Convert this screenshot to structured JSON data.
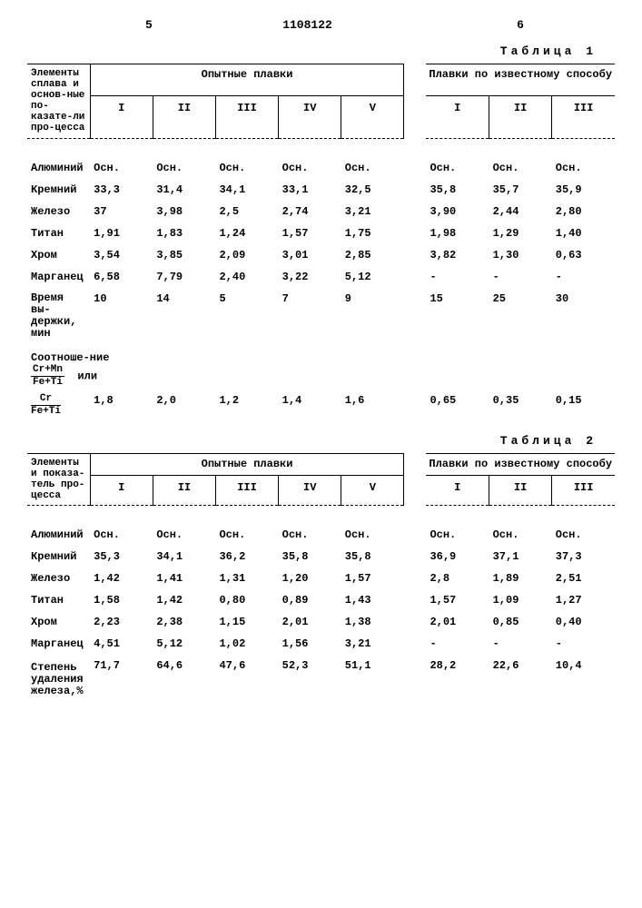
{
  "page": {
    "left_num": "5",
    "right_num": "6",
    "doc_number": "1108122"
  },
  "table1": {
    "caption": "Таблица 1",
    "header_left": "Элементы сплава и основ-ные по-казате-ли про-цесса",
    "group1": "Опытные плавки",
    "group2": "Плавки по известному способу",
    "cols": [
      "I",
      "II",
      "III",
      "IV",
      "V",
      "I",
      "II",
      "III"
    ],
    "rows": [
      {
        "label": "Алюминий",
        "v": [
          "Осн.",
          "Осн.",
          "Осн.",
          "Осн.",
          "Осн.",
          "Осн.",
          "Осн.",
          "Осн."
        ]
      },
      {
        "label": "Кремний",
        "v": [
          "33,3",
          "31,4",
          "34,1",
          "33,1",
          "32,5",
          "35,8",
          "35,7",
          "35,9"
        ]
      },
      {
        "label": "Железо",
        "v": [
          "37",
          "3,98",
          "2,5",
          "2,74",
          "3,21",
          "3,90",
          "2,44",
          "2,80"
        ]
      },
      {
        "label": "Титан",
        "v": [
          "1,91",
          "1,83",
          "1,24",
          "1,57",
          "1,75",
          "1,98",
          "1,29",
          "1,40"
        ]
      },
      {
        "label": "Хром",
        "v": [
          "3,54",
          "3,85",
          "2,09",
          "3,01",
          "2,85",
          "3,82",
          "1,30",
          "0,63"
        ]
      },
      {
        "label": "Марганец",
        "v": [
          "6,58",
          "7,79",
          "2,40",
          "3,22",
          "5,12",
          "-",
          "-",
          "-"
        ]
      }
    ],
    "time_label": "Время вы-держки, мин",
    "time_vals": [
      "10",
      "14",
      "5",
      "7",
      "9",
      "15",
      "25",
      "30"
    ],
    "ratio_label": "Соотноше-ние",
    "ratio_frac1_num": "Cr+Mn",
    "ratio_frac1_den": "Fe+Ti",
    "ratio_or": "или",
    "ratio_frac2_num": "Cr",
    "ratio_frac2_den": "Fe+Ti",
    "ratio_vals": [
      "1,8",
      "2,0",
      "1,2",
      "1,4",
      "1,6",
      "0,65",
      "0,35",
      "0,15"
    ]
  },
  "table2": {
    "caption": "Таблица 2",
    "header_left": "Элементы и показа-тель про-цесса",
    "group1": "Опытные плавки",
    "group2": "Плавки по известному способу",
    "cols": [
      "I",
      "II",
      "III",
      "IV",
      "V",
      "I",
      "II",
      "III"
    ],
    "rows": [
      {
        "label": "Алюминий",
        "v": [
          "Осн.",
          "Осн.",
          "Осн.",
          "Осн.",
          "Осн.",
          "Осн.",
          "Осн.",
          "Осн."
        ]
      },
      {
        "label": "Кремний",
        "v": [
          "35,3",
          "34,1",
          "36,2",
          "35,8",
          "35,8",
          "36,9",
          "37,1",
          "37,3"
        ]
      },
      {
        "label": "Железо",
        "v": [
          "1,42",
          "1,41",
          "1,31",
          "1,20",
          "1,57",
          "2,8",
          "1,89",
          "2,51"
        ]
      },
      {
        "label": "Титан",
        "v": [
          "1,58",
          "1,42",
          "0,80",
          "0,89",
          "1,43",
          "1,57",
          "1,09",
          "1,27"
        ]
      },
      {
        "label": "Хром",
        "v": [
          "2,23",
          "2,38",
          "1,15",
          "2,01",
          "1,38",
          "2,01",
          "0,85",
          "0,40"
        ]
      },
      {
        "label": "Марганец",
        "v": [
          "4,51",
          "5,12",
          "1,02",
          "1,56",
          "3,21",
          "-",
          "-",
          "-"
        ]
      }
    ],
    "degree_label": "Степень удаления железа,%",
    "degree_vals": [
      "71,7",
      "64,6",
      "47,6",
      "52,3",
      "51,1",
      "28,2",
      "22,6",
      "10,4"
    ]
  }
}
